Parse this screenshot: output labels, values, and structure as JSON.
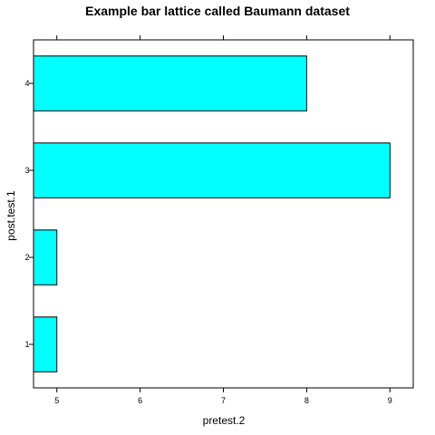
{
  "chart_data": {
    "type": "bar",
    "orientation": "horizontal",
    "title": "Example bar lattice called Baumann dataset",
    "xlabel": "pretest.2",
    "ylabel": "post.test.1",
    "categories": [
      "1",
      "2",
      "3",
      "4"
    ],
    "values": [
      5,
      5,
      9,
      8
    ],
    "xlim": [
      4.72,
      9.28
    ],
    "xticks": [
      5,
      6,
      7,
      8,
      9
    ],
    "bar_color": "#00FFFF",
    "border_color": "#000000",
    "grid": false
  }
}
